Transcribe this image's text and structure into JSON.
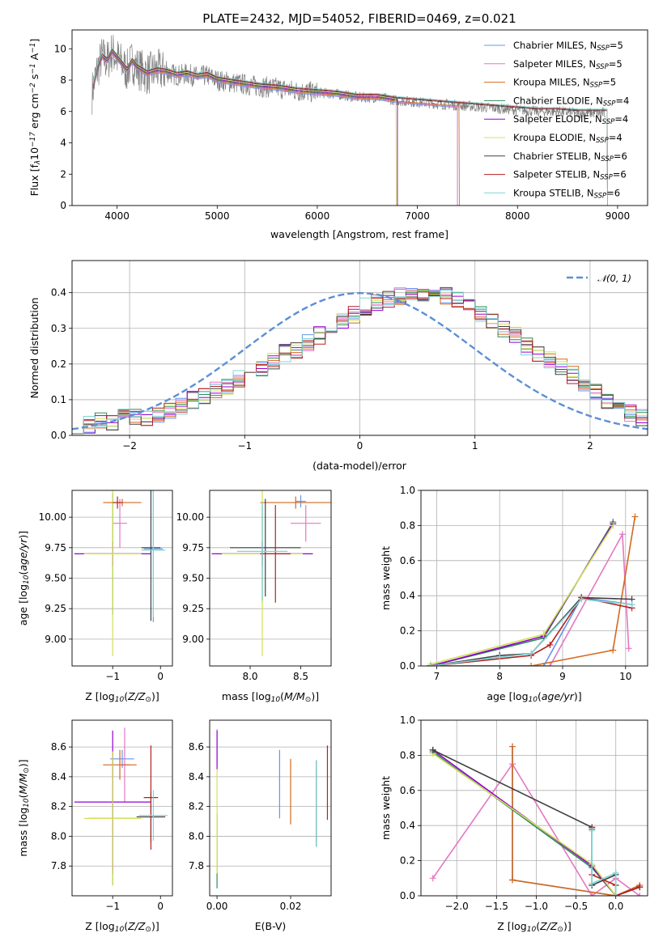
{
  "figure": {
    "title": "PLATE=2432, MJD=54052, FIBERID=0469, z=0.021"
  },
  "chart_data": [
    {
      "id": "spectrum",
      "type": "line",
      "xlabel": "wavelength [Angstrom, rest frame]",
      "ylabel": "Flux [fλ10⁻¹⁷ erg cm⁻² s⁻¹ A⁻¹]",
      "xlim": [
        3550,
        9300
      ],
      "ylim": [
        0,
        11.2
      ],
      "xticks": [
        4000,
        5000,
        6000,
        7000,
        8000,
        9000
      ],
      "yticks": [
        0,
        2,
        4,
        6,
        8,
        10
      ],
      "legend_position": "upper right",
      "data_color": "#808080",
      "data_points": [
        [
          3750,
          7.2
        ],
        [
          3800,
          8.6
        ],
        [
          3850,
          9.5
        ],
        [
          3900,
          9.2
        ],
        [
          3950,
          9.8
        ],
        [
          4000,
          9.4
        ],
        [
          4050,
          9.0
        ],
        [
          4100,
          8.6
        ],
        [
          4150,
          9.2
        ],
        [
          4200,
          8.8
        ],
        [
          4300,
          8.4
        ],
        [
          4400,
          8.6
        ],
        [
          4500,
          8.5
        ],
        [
          4600,
          8.3
        ],
        [
          4700,
          8.4
        ],
        [
          4800,
          8.2
        ],
        [
          4900,
          8.3
        ],
        [
          5000,
          8.0
        ],
        [
          5200,
          7.8
        ],
        [
          5400,
          7.6
        ],
        [
          5600,
          7.5
        ],
        [
          5800,
          7.3
        ],
        [
          6000,
          7.2
        ],
        [
          6200,
          7.1
        ],
        [
          6400,
          6.9
        ],
        [
          6600,
          6.9
        ],
        [
          6800,
          6.7
        ],
        [
          7000,
          6.6
        ],
        [
          7200,
          6.5
        ],
        [
          7400,
          6.4
        ],
        [
          7600,
          6.3
        ],
        [
          7800,
          6.2
        ],
        [
          8000,
          6.1
        ],
        [
          8200,
          6.0
        ],
        [
          8400,
          6.0
        ],
        [
          8600,
          5.9
        ],
        [
          8800,
          5.9
        ]
      ],
      "series": [
        {
          "name": "Chabrier MILES, N_SSP=5",
          "color": "#6495ed",
          "xmax": 7400
        },
        {
          "name": "Salpeter MILES, N_SSP=5",
          "color": "#e377c2",
          "xmax": 7400
        },
        {
          "name": "Kroupa MILES, N_SSP=5",
          "color": "#d2691e",
          "xmax": 7420
        },
        {
          "name": "Chabrier ELODIE, N_SSP=4",
          "color": "#2e8b57",
          "xmax": 6800
        },
        {
          "name": "Salpeter ELODIE, N_SSP=4",
          "color": "#9400d3",
          "xmax": 6800
        },
        {
          "name": "Kroupa ELODIE, N_SSP=4",
          "color": "#d4e157",
          "xmax": 6790
        },
        {
          "name": "Chabrier STELIB, N_SSP=6",
          "color": "#404040",
          "xmax": 8900
        },
        {
          "name": "Salpeter STELIB, N_SSP=6",
          "color": "#b22222",
          "xmax": 8900
        },
        {
          "name": "Kroupa STELIB, N_SSP=6",
          "color": "#7fd4d4",
          "xmax": 8900
        }
      ],
      "legend_labels": [
        {
          "pre": "Chabrier MILES, N",
          "sub": "SSP",
          "post": "=5"
        },
        {
          "pre": "Salpeter MILES, N",
          "sub": "SSP",
          "post": "=5"
        },
        {
          "pre": "Kroupa MILES, N",
          "sub": "SSP",
          "post": "=5"
        },
        {
          "pre": "Chabrier ELODIE, N",
          "sub": "SSP",
          "post": "=4"
        },
        {
          "pre": "Salpeter ELODIE, N",
          "sub": "SSP",
          "post": "=4"
        },
        {
          "pre": "Kroupa ELODIE, N",
          "sub": "SSP",
          "post": "=4"
        },
        {
          "pre": "Chabrier STELIB, N",
          "sub": "SSP",
          "post": "=6"
        },
        {
          "pre": "Salpeter STELIB, N",
          "sub": "SSP",
          "post": "=6"
        },
        {
          "pre": "Kroupa STELIB, N",
          "sub": "SSP",
          "post": "=6"
        }
      ]
    },
    {
      "id": "residuals",
      "type": "histogram",
      "xlabel": "(data-model)/error",
      "ylabel": "Normed distribution",
      "xlim": [
        -2.5,
        2.5
      ],
      "ylim": [
        0,
        0.49
      ],
      "xticks": [
        -2,
        -1,
        0,
        1,
        2
      ],
      "yticks": [
        0.0,
        0.1,
        0.2,
        0.3,
        0.4
      ],
      "grid": true,
      "bin_width": 0.1,
      "bins_left_edges_from": -2.5,
      "base_histogram": [
        0.03,
        0.03,
        0.04,
        0.04,
        0.05,
        0.05,
        0.05,
        0.06,
        0.07,
        0.08,
        0.1,
        0.11,
        0.13,
        0.14,
        0.16,
        0.18,
        0.19,
        0.21,
        0.23,
        0.24,
        0.26,
        0.28,
        0.3,
        0.32,
        0.34,
        0.36,
        0.37,
        0.38,
        0.39,
        0.4,
        0.4,
        0.4,
        0.39,
        0.38,
        0.36,
        0.34,
        0.32,
        0.3,
        0.28,
        0.25,
        0.23,
        0.21,
        0.19,
        0.17,
        0.14,
        0.12,
        0.1,
        0.08,
        0.06,
        0.05
      ],
      "gaussian_label": "𝒩(0, 1)",
      "gaussian_color": "#5b8fd6"
    },
    {
      "id": "age_vs_Z",
      "type": "errorbar",
      "xlabel": "Z [log₁₀(Z/Z⊙)]",
      "ylabel": "age  [log₁₀(age/yr)]",
      "xlim": [
        -1.85,
        0.25
      ],
      "ylim": [
        8.78,
        10.22
      ],
      "xticks": [
        -1,
        0
      ],
      "yticks": [
        9.0,
        9.25,
        9.5,
        9.75,
        10.0
      ],
      "points": [
        {
          "series": 0,
          "x": -0.15,
          "y": 9.74,
          "xerr": 0.2,
          "yerr": 0.6
        },
        {
          "series": 1,
          "x": -0.85,
          "y": 9.95,
          "xerr": 0.15,
          "yerr": 0.2
        },
        {
          "series": 2,
          "x": -0.8,
          "y": 10.12,
          "xerr": 0.4,
          "yerr": 0.03
        },
        {
          "series": 3,
          "x": -1.0,
          "y": 9.7,
          "xerr": 0.55,
          "yerr": 0.5
        },
        {
          "series": 4,
          "x": -1.0,
          "y": 9.7,
          "xerr": 0.8,
          "yerr": 0.1
        },
        {
          "series": 5,
          "x": -1.0,
          "y": 9.7,
          "xerr": 0.6,
          "yerr": 0.84
        },
        {
          "series": 6,
          "x": -0.2,
          "y": 9.75,
          "xerr": 0.2,
          "yerr": 0.6
        },
        {
          "series": 7,
          "x": -0.9,
          "y": 10.12,
          "xerr": 0.1,
          "yerr": 0.05
        },
        {
          "series": 8,
          "x": -0.15,
          "y": 9.73,
          "xerr": 0.25,
          "yerr": 0.55
        }
      ]
    },
    {
      "id": "age_vs_mass",
      "type": "errorbar",
      "xlabel": "mass [log₁₀(M/M⊙)]",
      "ylabel": "",
      "xlim": [
        7.6,
        8.8
      ],
      "ylim": [
        8.78,
        10.22
      ],
      "xticks": [
        8.0,
        8.5
      ],
      "yticks": [
        9.0,
        9.25,
        9.5,
        9.75,
        10.0
      ],
      "points": [
        {
          "series": 0,
          "x": 8.5,
          "y": 10.13,
          "xerr": 0.05,
          "yerr": 0.05
        },
        {
          "series": 1,
          "x": 8.55,
          "y": 9.95,
          "xerr": 0.15,
          "yerr": 0.15
        },
        {
          "series": 2,
          "x": 8.45,
          "y": 10.12,
          "xerr": 0.35,
          "yerr": 0.05
        },
        {
          "series": 3,
          "x": 8.12,
          "y": 9.7,
          "xerr": 0.4,
          "yerr": 0.4
        },
        {
          "series": 4,
          "x": 8.12,
          "y": 9.7,
          "xerr": 0.5,
          "yerr": 0.1
        },
        {
          "series": 5,
          "x": 8.12,
          "y": 9.7,
          "xerr": 0.4,
          "yerr": 0.84
        },
        {
          "series": 6,
          "x": 8.15,
          "y": 9.75,
          "xerr": 0.35,
          "yerr": 0.4
        },
        {
          "series": 7,
          "x": 8.25,
          "y": 9.7,
          "xerr": 0.15,
          "yerr": 0.4
        },
        {
          "series": 8,
          "x": 8.12,
          "y": 9.72,
          "xerr": 0.25,
          "yerr": 0.4
        }
      ]
    },
    {
      "id": "weight_vs_age",
      "type": "line",
      "xlabel": "age  [log₁₀(age/yr)]",
      "ylabel": "mass weight",
      "xlim": [
        6.75,
        10.35
      ],
      "ylim": [
        0,
        1.0
      ],
      "xticks": [
        7,
        8,
        9,
        10
      ],
      "yticks": [
        0.0,
        0.2,
        0.4,
        0.6,
        0.8,
        1.0
      ],
      "grid": true,
      "lines": [
        {
          "series": 0,
          "points": [
            [
              6.9,
              0.0
            ],
            [
              8.7,
              0.0
            ],
            [
              9.3,
              0.39
            ],
            [
              10.1,
              0.35
            ]
          ]
        },
        {
          "series": 1,
          "points": [
            [
              6.9,
              0.0
            ],
            [
              8.8,
              0.0
            ],
            [
              9.95,
              0.75
            ],
            [
              10.05,
              0.1
            ]
          ]
        },
        {
          "series": 2,
          "points": [
            [
              6.9,
              0.0
            ],
            [
              8.5,
              0.0
            ],
            [
              9.8,
              0.09
            ],
            [
              10.15,
              0.85
            ]
          ]
        },
        {
          "series": 3,
          "points": [
            [
              6.9,
              0.0
            ],
            [
              8.7,
              0.16
            ],
            [
              9.8,
              0.82
            ]
          ]
        },
        {
          "series": 4,
          "points": [
            [
              6.9,
              0.0
            ],
            [
              8.7,
              0.17
            ],
            [
              9.8,
              0.81
            ]
          ]
        },
        {
          "series": 5,
          "points": [
            [
              6.9,
              0.01
            ],
            [
              8.7,
              0.18
            ],
            [
              9.8,
              0.8
            ]
          ]
        },
        {
          "series": 6,
          "points": [
            [
              6.9,
              0.0
            ],
            [
              8.0,
              0.06
            ],
            [
              8.5,
              0.07
            ],
            [
              9.3,
              0.39
            ],
            [
              10.1,
              0.38
            ]
          ]
        },
        {
          "series": 7,
          "points": [
            [
              6.9,
              0.0
            ],
            [
              8.5,
              0.06
            ],
            [
              8.8,
              0.12
            ],
            [
              9.3,
              0.39
            ],
            [
              10.1,
              0.33
            ]
          ]
        },
        {
          "series": 8,
          "points": [
            [
              6.9,
              0.0
            ],
            [
              8.0,
              0.05
            ],
            [
              8.5,
              0.07
            ],
            [
              9.3,
              0.38
            ],
            [
              10.1,
              0.35
            ]
          ]
        }
      ]
    },
    {
      "id": "mass_vs_Z",
      "type": "errorbar",
      "xlabel": "Z [log₁₀(Z/Z⊙)]",
      "ylabel": "mass [log₁₀(M/M⊙)]",
      "xlim": [
        -1.85,
        0.25
      ],
      "ylim": [
        7.6,
        8.78
      ],
      "xticks": [
        -1,
        0
      ],
      "yticks": [
        7.8,
        8.0,
        8.2,
        8.4,
        8.6
      ],
      "points": [
        {
          "series": 0,
          "x": -0.8,
          "y": 8.52,
          "xerr": 0.25,
          "yerr": 0.06
        },
        {
          "series": 1,
          "x": -0.75,
          "y": 8.48,
          "xerr": 0.1,
          "yerr": 0.25
        },
        {
          "series": 2,
          "x": -0.85,
          "y": 8.48,
          "xerr": 0.35,
          "yerr": 0.1
        },
        {
          "series": 3,
          "x": -1.0,
          "y": 8.12,
          "xerr": 0.5,
          "yerr": 0.45
        },
        {
          "series": 4,
          "x": -1.0,
          "y": 8.23,
          "xerr": 0.8,
          "yerr": 0.48
        },
        {
          "series": 5,
          "x": -1.0,
          "y": 8.12,
          "xerr": 0.6,
          "yerr": 0.45
        },
        {
          "series": 6,
          "x": -0.2,
          "y": 8.13,
          "xerr": 0.3,
          "yerr": 0.17
        },
        {
          "series": 7,
          "x": -0.2,
          "y": 8.26,
          "xerr": 0.15,
          "yerr": 0.35
        },
        {
          "series": 8,
          "x": -0.15,
          "y": 8.14,
          "xerr": 0.3,
          "yerr": 0.17
        }
      ]
    },
    {
      "id": "mass_vs_ebv",
      "type": "errorbar",
      "xlabel": "E(B-V)",
      "ylabel": "",
      "xlim": [
        -0.002,
        0.031
      ],
      "ylim": [
        7.6,
        8.78
      ],
      "xticks": [
        0.0,
        0.02
      ],
      "yticks": [
        7.8,
        8.0,
        8.2,
        8.4,
        8.6
      ],
      "points": [
        {
          "series": 0,
          "x": 0.017,
          "y": 8.35,
          "xerr": 0,
          "yerr": 0.23
        },
        {
          "series": 1,
          "x": 0.0,
          "y": 8.6,
          "xerr": 0,
          "yerr": 0.12
        },
        {
          "series": 2,
          "x": 0.02,
          "y": 8.3,
          "xerr": 0,
          "yerr": 0.22
        },
        {
          "series": 3,
          "x": 0.0,
          "y": 7.9,
          "xerr": 0,
          "yerr": 0.25
        },
        {
          "series": 4,
          "x": 0.0,
          "y": 8.58,
          "xerr": 0,
          "yerr": 0.13
        },
        {
          "series": 5,
          "x": 0.0,
          "y": 8.1,
          "xerr": 0,
          "yerr": 0.35
        },
        {
          "series": 6,
          "x": 0.027,
          "y": 8.22,
          "xerr": 0,
          "yerr": 0.29
        },
        {
          "series": 7,
          "x": 0.03,
          "y": 8.36,
          "xerr": 0,
          "yerr": 0.25
        },
        {
          "series": 8,
          "x": 0.027,
          "y": 8.22,
          "xerr": 0,
          "yerr": 0.29
        }
      ]
    },
    {
      "id": "weight_vs_Z",
      "type": "line",
      "xlabel": "Z [log₁₀(Z/Z⊙)]",
      "ylabel": "mass weight",
      "xlim": [
        -2.45,
        0.4
      ],
      "ylim": [
        0,
        1.0
      ],
      "xticks": [
        -2.0,
        -1.5,
        -1.0,
        -0.5,
        0.0
      ],
      "yticks": [
        0.0,
        0.2,
        0.4,
        0.6,
        0.8,
        1.0
      ],
      "grid": true,
      "lines": [
        {
          "series": 0,
          "points": [
            [
              -1.3,
              0.85
            ],
            [
              -1.3,
              0.09
            ],
            [
              0.0,
              0.0
            ],
            [
              0.3,
              0.05
            ]
          ]
        },
        {
          "series": 1,
          "points": [
            [
              -2.3,
              0.1
            ],
            [
              -1.3,
              0.75
            ],
            [
              -0.3,
              0.0
            ],
            [
              0.0,
              0.1
            ],
            [
              0.3,
              0.0
            ]
          ]
        },
        {
          "series": 2,
          "points": [
            [
              -1.3,
              0.85
            ],
            [
              -1.3,
              0.09
            ],
            [
              0.0,
              0.0
            ],
            [
              0.3,
              0.06
            ]
          ]
        },
        {
          "series": 3,
          "points": [
            [
              -2.3,
              0.82
            ],
            [
              -0.3,
              0.16
            ],
            [
              0.0,
              0.0
            ]
          ]
        },
        {
          "series": 4,
          "points": [
            [
              -2.3,
              0.83
            ],
            [
              -0.3,
              0.17
            ],
            [
              0.0,
              0.0
            ]
          ]
        },
        {
          "series": 5,
          "points": [
            [
              -2.3,
              0.81
            ],
            [
              -0.3,
              0.18
            ],
            [
              0.0,
              0.0
            ]
          ]
        },
        {
          "series": 6,
          "points": [
            [
              -2.3,
              0.83
            ],
            [
              -0.3,
              0.39
            ],
            [
              -0.3,
              0.06
            ],
            [
              0.0,
              0.12
            ],
            [
              0.0,
              0.0
            ],
            [
              0.3,
              0.05
            ]
          ]
        },
        {
          "series": 7,
          "points": [
            [
              -0.3,
              0.38
            ],
            [
              -0.3,
              0.12
            ],
            [
              0.0,
              0.06
            ],
            [
              0.0,
              0.0
            ],
            [
              0.3,
              0.05
            ]
          ]
        },
        {
          "series": 8,
          "points": [
            [
              -0.3,
              0.37
            ],
            [
              -0.3,
              0.07
            ],
            [
              0.0,
              0.13
            ],
            [
              0.0,
              0.0
            ]
          ]
        }
      ]
    }
  ]
}
